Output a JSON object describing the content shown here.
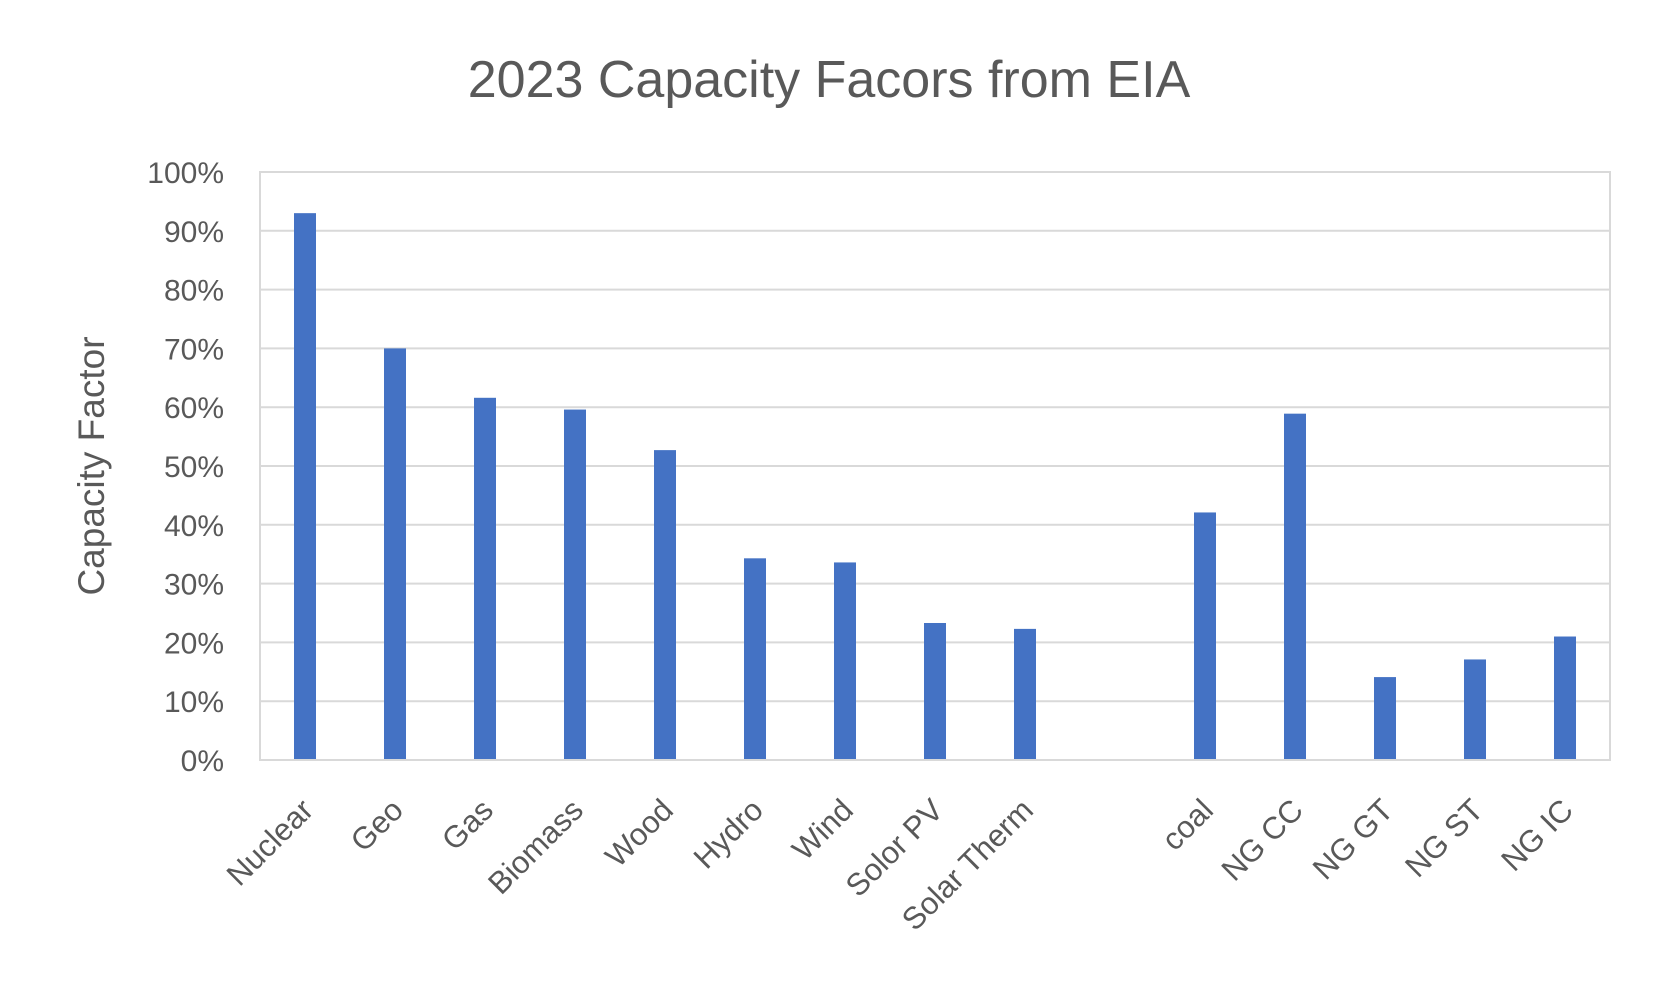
{
  "chart_data": {
    "type": "bar",
    "title": "2023 Capacity Facors from EIA",
    "xlabel": "",
    "ylabel": "Capacity Factor",
    "ylim": [
      0,
      100
    ],
    "yticks": [
      "0%",
      "10%",
      "20%",
      "30%",
      "40%",
      "50%",
      "60%",
      "70%",
      "80%",
      "90%",
      "100%"
    ],
    "categories": [
      "Nuclear",
      "Geo",
      "Gas",
      "Biomass",
      "Wood",
      "Hydro",
      "Wind",
      "Solor PV",
      "Solar Therm",
      "",
      "coal",
      "NG CC",
      "NG GT",
      "NG ST",
      "NG IC"
    ],
    "values": [
      93.0,
      70.0,
      61.6,
      59.6,
      52.7,
      34.3,
      33.6,
      23.3,
      22.3,
      null,
      42.1,
      58.9,
      14.1,
      17.1,
      21.0
    ],
    "bar_color": "#4472c4",
    "grid": true,
    "legend": "none"
  }
}
